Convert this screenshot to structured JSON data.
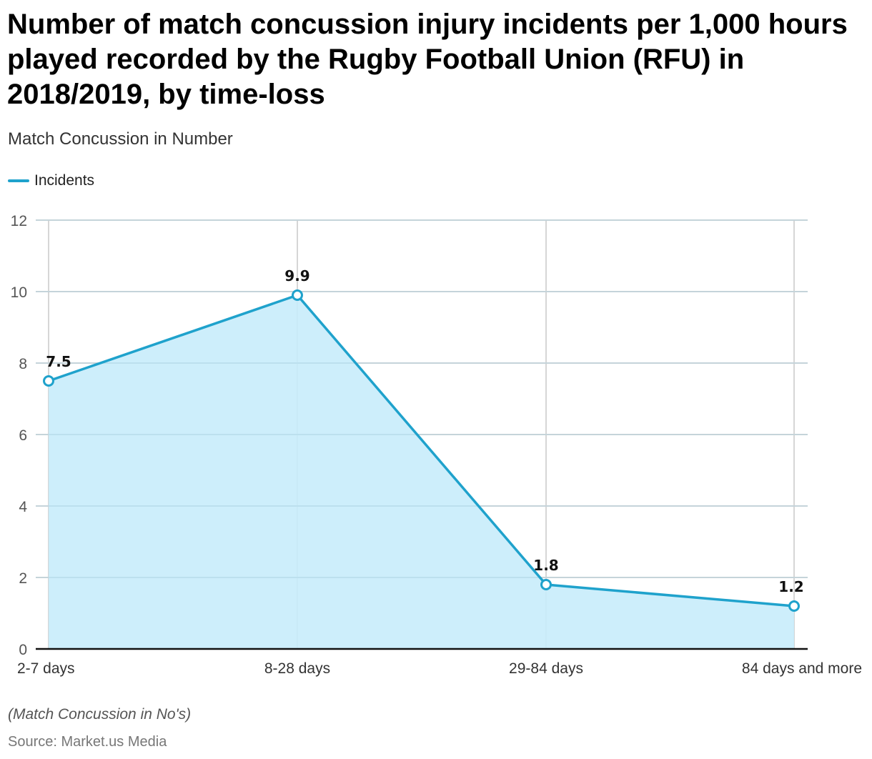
{
  "header": {
    "title": "Number of match concussion injury incidents per 1,000 hours played recorded by the Rugby Football Union (RFU) in 2018/2019, by time-loss",
    "subtitle": "Match Concussion in Number"
  },
  "footer": {
    "note": "(Match Concussion in No's)",
    "source": "Source: Market.us Media"
  },
  "colors": {
    "line": "#1fa2cc",
    "fill": "#c8ecfb",
    "grid": "#d6d6d6",
    "axis": "#111111"
  },
  "chart_data": {
    "type": "area",
    "title": "Number of match concussion injury incidents per 1,000 hours played recorded by the Rugby Football Union (RFU) in 2018/2019, by time-loss",
    "subtitle": "Match Concussion in Number",
    "xlabel": "",
    "ylabel": "",
    "categories": [
      "2-7 days",
      "8-28 days",
      "29-84 days",
      "84 days and more"
    ],
    "series": [
      {
        "name": "Incidents",
        "values": [
          7.5,
          9.9,
          1.8,
          1.2
        ],
        "labels": [
          "7.5",
          "9.9",
          "1.8",
          "1.2"
        ]
      }
    ],
    "ylim": [
      0,
      12
    ],
    "yticks": [
      0,
      2,
      4,
      6,
      8,
      10,
      12
    ],
    "grid": true,
    "legend": "top-left",
    "markers": "hollow-circle",
    "data_labels": true
  }
}
